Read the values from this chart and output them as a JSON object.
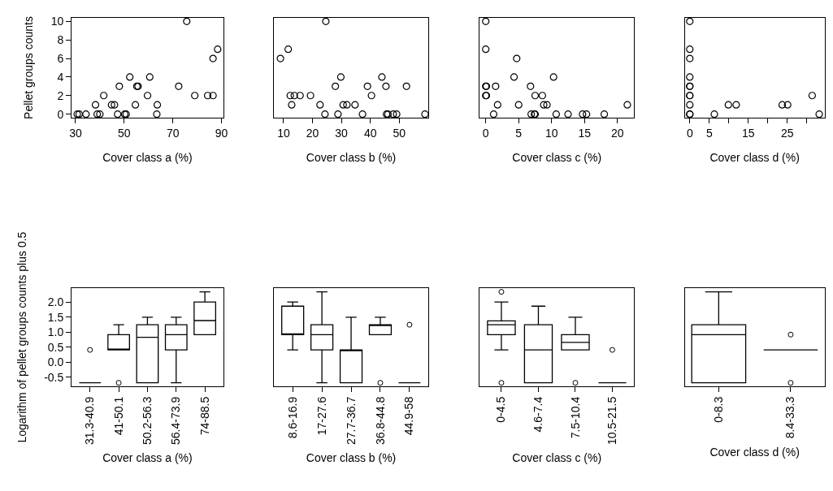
{
  "chart_data": [
    {
      "type": "scatter",
      "xlabel": "Cover class a (%)",
      "ylabel": "Pellet groups counts",
      "color": "#000000",
      "marker": "circle",
      "x": [
        30.7,
        31.5,
        34.3,
        38.9,
        40.0,
        47.3,
        50.2,
        50.8,
        63.4,
        38.2,
        44.8,
        46.0,
        54.6,
        63.6,
        41.6,
        59.6,
        79.0,
        84.3,
        86.5,
        48.0,
        55.2,
        55.7,
        72.4,
        52.3,
        60.5,
        86.5,
        88.4,
        75.7
      ],
      "values": [
        0,
        0,
        0,
        0,
        0,
        0,
        0,
        0,
        0,
        1,
        1,
        1,
        1,
        1,
        2,
        2,
        2,
        2,
        2,
        3,
        3,
        3,
        3,
        4,
        4,
        6,
        7,
        10
      ],
      "xlim": [
        28.4,
        90.7
      ],
      "xticks": [
        30,
        50,
        70,
        90
      ],
      "ylim": [
        -0.4,
        10.4
      ],
      "yticks": [
        0,
        2,
        4,
        6,
        8,
        10
      ]
    },
    {
      "type": "scatter",
      "xlabel": "Cover class b (%)",
      "color": "#000000",
      "marker": "circle",
      "tick_labels": "x",
      "x": [
        24.6,
        11.6,
        8.9,
        29.8,
        44.0,
        27.9,
        39.0,
        45.4,
        52.5,
        12.3,
        13.7,
        15.7,
        19.3,
        40.4,
        12.8,
        22.6,
        30.6,
        31.9,
        34.7,
        24.3,
        28.8,
        37.3,
        45.6,
        46.1,
        47.9,
        49.1,
        58.9
      ],
      "values": [
        10,
        7,
        6,
        4,
        4,
        3,
        3,
        3,
        3,
        2,
        2,
        2,
        2,
        2,
        1,
        1,
        1,
        1,
        1,
        0,
        0,
        0,
        0,
        0,
        0,
        0,
        0
      ],
      "xlim": [
        6.7,
        60.0
      ],
      "xticks": [
        10,
        20,
        30,
        40,
        50
      ],
      "ylim": [
        -0.4,
        10.4
      ]
    },
    {
      "type": "scatter",
      "xlabel": "Cover class c (%)",
      "color": "#000000",
      "marker": "circle",
      "tick_labels": "x",
      "x": [
        0,
        0,
        4.7,
        4.3,
        10.3,
        0,
        0.1,
        1.5,
        6.8,
        0,
        0.1,
        7.5,
        8.6,
        1.8,
        5.0,
        8.8,
        9.3,
        21.5,
        1.2,
        6.9,
        7.4,
        7.5,
        10.7,
        12.5,
        14.7,
        15.3,
        18.0
      ],
      "values": [
        10,
        7,
        6,
        4,
        4,
        3,
        3,
        3,
        3,
        2,
        2,
        2,
        2,
        1,
        1,
        1,
        1,
        1,
        0,
        0,
        0,
        0,
        0,
        0,
        0,
        0,
        0
      ],
      "xlim": [
        -0.9,
        22.5
      ],
      "xticks": [
        0,
        5,
        10,
        15,
        20
      ],
      "ylim": [
        -0.4,
        10.4
      ]
    },
    {
      "type": "scatter",
      "xlabel": "Cover class d (%)",
      "color": "#000000",
      "marker": "circle",
      "tick_labels": "x",
      "x": [
        0,
        0,
        0,
        0,
        0,
        0,
        0,
        0,
        0,
        0,
        0,
        6.3,
        33.2,
        9.9,
        11.9,
        23.7,
        25.1,
        31.4
      ],
      "values": [
        10,
        7,
        6,
        4,
        3,
        3,
        2,
        2,
        1,
        0,
        0,
        0,
        0,
        1,
        1,
        1,
        1,
        2
      ],
      "xlim": [
        -1.3,
        34.6
      ],
      "xticks": [
        0,
        5,
        {
          "value": 10,
          "label": null
        },
        15,
        {
          "value": 20,
          "label": null
        },
        25,
        {
          "value": 30,
          "label": null
        }
      ],
      "ylim": [
        -0.4,
        10.4
      ]
    },
    {
      "type": "box",
      "xlabel": "Cover class a (%)",
      "ylabel": "Logarithm of pellet groups counts plus 0.5",
      "color": "#000000",
      "categories": [
        "31.3-40.9",
        "41-50.1",
        "50.2-56.3",
        "56.4-73.9",
        "74-88.5"
      ],
      "boxes": [
        {
          "low": -0.69,
          "q1": -0.69,
          "median": -0.69,
          "q3": -0.69,
          "high": -0.69,
          "outliers": [
            0.41
          ]
        },
        {
          "low": 0.41,
          "q1": 0.41,
          "median": 0.41,
          "q3": 0.92,
          "high": 1.25,
          "outliers": [
            -0.69
          ]
        },
        {
          "low": -0.69,
          "q1": -0.69,
          "median": 0.83,
          "q3": 1.25,
          "high": 1.5
        },
        {
          "low": -0.69,
          "q1": 0.41,
          "median": 0.92,
          "q3": 1.25,
          "high": 1.5
        },
        {
          "low": 0.92,
          "q1": 0.92,
          "median": 1.39,
          "q3": 2.01,
          "high": 2.35
        }
      ],
      "ylim": [
        -0.81,
        2.47
      ],
      "yticks": [
        -0.5,
        {
          "value": 0,
          "label": "0.0"
        },
        0.5,
        {
          "value": 1,
          "label": "1.0"
        },
        1.5,
        {
          "value": 2,
          "label": "2.0"
        }
      ]
    },
    {
      "type": "box",
      "xlabel": "Cover class b (%)",
      "color": "#000000",
      "tick_labels": "x",
      "categories": [
        "8.6-16.9",
        "17-27.6",
        "27.7-36.7",
        "36.8-44.8",
        "44.9-58"
      ],
      "boxes": [
        {
          "low": 0.41,
          "q1": 0.92,
          "median": 0.92,
          "q3": 1.87,
          "high": 2.01
        },
        {
          "low": -0.69,
          "q1": 0.41,
          "median": 0.92,
          "q3": 1.25,
          "high": 2.35
        },
        {
          "low": -0.69,
          "q1": -0.69,
          "median": 0.41,
          "q3": 0.41,
          "high": 1.5
        },
        {
          "low": 0.92,
          "q1": 0.92,
          "median": 1.25,
          "q3": 1.25,
          "high": 1.5,
          "outliers": [
            -0.69
          ]
        },
        {
          "low": -0.69,
          "q1": -0.69,
          "median": -0.69,
          "q3": -0.69,
          "high": -0.69,
          "outliers": [
            1.25
          ]
        }
      ],
      "ylim": [
        -0.81,
        2.47
      ]
    },
    {
      "type": "box",
      "xlabel": "Cover class c (%)",
      "color": "#000000",
      "tick_labels": "x",
      "categories": [
        "0-4.5",
        "4.6-7.4",
        "7.5-10.4",
        "10.5-21.5"
      ],
      "boxes": [
        {
          "low": 0.41,
          "q1": 0.92,
          "median": 1.25,
          "q3": 1.38,
          "high": 2.01,
          "outliers": [
            2.35,
            -0.69
          ]
        },
        {
          "low": -0.69,
          "q1": -0.69,
          "median": 0.41,
          "q3": 1.25,
          "high": 1.87
        },
        {
          "low": 0.41,
          "q1": 0.41,
          "median": 0.66,
          "q3": 0.92,
          "high": 1.5,
          "outliers": [
            -0.69
          ]
        },
        {
          "low": -0.69,
          "q1": -0.69,
          "median": -0.69,
          "q3": -0.69,
          "high": -0.69,
          "outliers": [
            0.41
          ]
        }
      ],
      "ylim": [
        -0.81,
        2.47
      ]
    },
    {
      "type": "box",
      "xlabel": "Cover class d (%)",
      "color": "#000000",
      "tick_labels": "x",
      "categories": [
        "0-8.3",
        "8.4-33.3"
      ],
      "boxes": [
        {
          "low": -0.69,
          "q1": -0.69,
          "median": 0.92,
          "q3": 1.25,
          "high": 2.35
        },
        {
          "low": 0.41,
          "q1": 0.41,
          "median": 0.41,
          "q3": 0.41,
          "high": 0.41,
          "outliers": [
            0.92,
            -0.69
          ]
        }
      ],
      "ylim": [
        -0.81,
        2.47
      ]
    }
  ]
}
